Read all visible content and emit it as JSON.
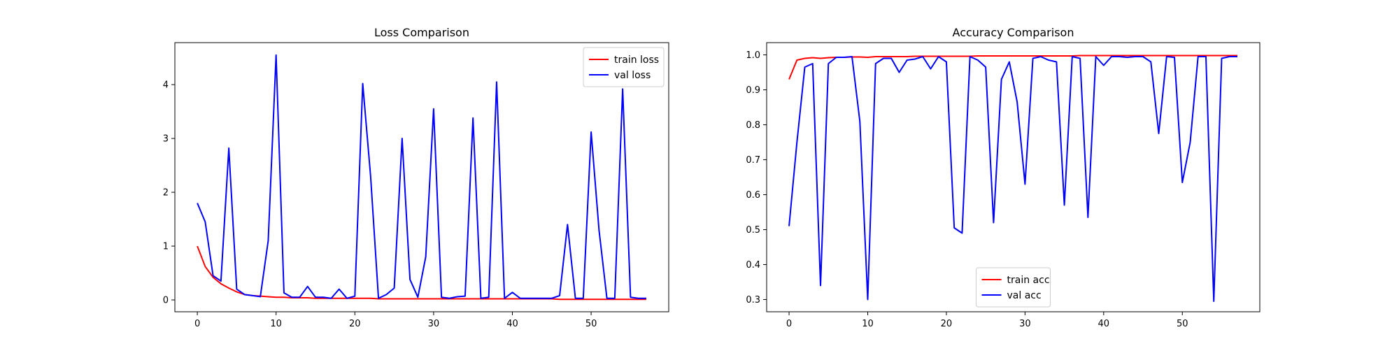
{
  "colors": {
    "train": "#ff0000",
    "val": "#0000ff"
  },
  "chart_data": [
    {
      "type": "line",
      "title": "Loss Comparison",
      "xlabel": "",
      "ylabel": "",
      "xlim": [
        -2.85,
        59.85
      ],
      "ylim": [
        -0.22,
        4.78
      ],
      "xticks": [
        0,
        10,
        20,
        30,
        40,
        50
      ],
      "yticks": [
        0,
        1,
        2,
        3,
        4
      ],
      "legend_position": "upper right",
      "series": [
        {
          "name": "train loss",
          "color": "#ff0000",
          "x": [
            0,
            1,
            2,
            3,
            4,
            5,
            6,
            7,
            8,
            9,
            10,
            11,
            12,
            13,
            14,
            15,
            16,
            17,
            18,
            19,
            20,
            21,
            22,
            23,
            24,
            25,
            26,
            27,
            28,
            29,
            30,
            31,
            32,
            33,
            34,
            35,
            36,
            37,
            38,
            39,
            40,
            41,
            42,
            43,
            44,
            45,
            46,
            47,
            48,
            49,
            50,
            51,
            52,
            53,
            54,
            55,
            56,
            57
          ],
          "y": [
            1.0,
            0.62,
            0.42,
            0.3,
            0.22,
            0.15,
            0.1,
            0.08,
            0.07,
            0.06,
            0.05,
            0.05,
            0.04,
            0.04,
            0.04,
            0.03,
            0.03,
            0.03,
            0.03,
            0.03,
            0.03,
            0.03,
            0.03,
            0.02,
            0.02,
            0.02,
            0.02,
            0.02,
            0.02,
            0.02,
            0.02,
            0.02,
            0.02,
            0.02,
            0.02,
            0.02,
            0.02,
            0.02,
            0.02,
            0.02,
            0.02,
            0.02,
            0.02,
            0.02,
            0.02,
            0.02,
            0.01,
            0.01,
            0.01,
            0.01,
            0.01,
            0.01,
            0.01,
            0.01,
            0.01,
            0.01,
            0.01,
            0.01
          ]
        },
        {
          "name": "val loss",
          "color": "#0000ff",
          "x": [
            0,
            1,
            2,
            3,
            4,
            5,
            6,
            7,
            8,
            9,
            10,
            11,
            12,
            13,
            14,
            15,
            16,
            17,
            18,
            19,
            20,
            21,
            22,
            23,
            24,
            25,
            26,
            27,
            28,
            29,
            30,
            31,
            32,
            33,
            34,
            35,
            36,
            37,
            38,
            39,
            40,
            41,
            42,
            43,
            44,
            45,
            46,
            47,
            48,
            49,
            50,
            51,
            52,
            53,
            54,
            55,
            56,
            57
          ],
          "y": [
            1.8,
            1.45,
            0.45,
            0.35,
            2.82,
            0.2,
            0.1,
            0.08,
            0.06,
            1.1,
            4.55,
            0.13,
            0.05,
            0.05,
            0.25,
            0.05,
            0.05,
            0.03,
            0.2,
            0.03,
            0.07,
            4.02,
            2.3,
            0.03,
            0.1,
            0.22,
            3.0,
            0.38,
            0.05,
            0.8,
            3.55,
            0.05,
            0.03,
            0.06,
            0.07,
            3.38,
            0.03,
            0.05,
            4.05,
            0.03,
            0.14,
            0.03,
            0.03,
            0.03,
            0.03,
            0.03,
            0.08,
            1.4,
            0.03,
            0.03,
            3.12,
            1.3,
            0.03,
            0.03,
            3.92,
            0.05,
            0.03,
            0.03
          ]
        }
      ]
    },
    {
      "type": "line",
      "title": "Accuracy Comparison",
      "xlabel": "",
      "ylabel": "",
      "xlim": [
        -2.85,
        59.85
      ],
      "ylim": [
        0.265,
        1.035
      ],
      "xticks": [
        0,
        10,
        20,
        30,
        40,
        50
      ],
      "yticks": [
        0.3,
        0.4,
        0.5,
        0.6,
        0.7,
        0.8,
        0.9,
        1.0
      ],
      "ytick_labels": [
        "0.3",
        "0.4",
        "0.5",
        "0.6",
        "0.7",
        "0.8",
        "0.9",
        "1.0"
      ],
      "legend_position": "lower center",
      "series": [
        {
          "name": "train acc",
          "color": "#ff0000",
          "x": [
            0,
            1,
            2,
            3,
            4,
            5,
            6,
            7,
            8,
            9,
            10,
            11,
            12,
            13,
            14,
            15,
            16,
            17,
            18,
            19,
            20,
            21,
            22,
            23,
            24,
            25,
            26,
            27,
            28,
            29,
            30,
            31,
            32,
            33,
            34,
            35,
            36,
            37,
            38,
            39,
            40,
            41,
            42,
            43,
            44,
            45,
            46,
            47,
            48,
            49,
            50,
            51,
            52,
            53,
            54,
            55,
            56,
            57
          ],
          "y": [
            0.93,
            0.985,
            0.99,
            0.992,
            0.99,
            0.992,
            0.993,
            0.993,
            0.994,
            0.994,
            0.993,
            0.995,
            0.995,
            0.995,
            0.995,
            0.995,
            0.996,
            0.996,
            0.996,
            0.996,
            0.996,
            0.996,
            0.996,
            0.996,
            0.997,
            0.997,
            0.997,
            0.997,
            0.997,
            0.997,
            0.997,
            0.997,
            0.997,
            0.997,
            0.997,
            0.997,
            0.997,
            0.998,
            0.998,
            0.998,
            0.998,
            0.998,
            0.998,
            0.998,
            0.998,
            0.998,
            0.998,
            0.998,
            0.998,
            0.998,
            0.998,
            0.998,
            0.998,
            0.998,
            0.998,
            0.998,
            0.998,
            0.998
          ]
        },
        {
          "name": "val acc",
          "color": "#0000ff",
          "x": [
            0,
            1,
            2,
            3,
            4,
            5,
            6,
            7,
            8,
            9,
            10,
            11,
            12,
            13,
            14,
            15,
            16,
            17,
            18,
            19,
            20,
            21,
            22,
            23,
            24,
            25,
            26,
            27,
            28,
            29,
            30,
            31,
            32,
            33,
            34,
            35,
            36,
            37,
            38,
            39,
            40,
            41,
            42,
            43,
            44,
            45,
            46,
            47,
            48,
            49,
            50,
            51,
            52,
            53,
            54,
            55,
            56,
            57
          ],
          "y": [
            0.51,
            0.75,
            0.965,
            0.975,
            0.34,
            0.975,
            0.993,
            0.993,
            0.995,
            0.81,
            0.3,
            0.975,
            0.99,
            0.99,
            0.95,
            0.985,
            0.988,
            0.995,
            0.96,
            0.995,
            0.98,
            0.505,
            0.49,
            0.995,
            0.985,
            0.965,
            0.52,
            0.93,
            0.98,
            0.865,
            0.63,
            0.99,
            0.995,
            0.985,
            0.98,
            0.57,
            0.995,
            0.99,
            0.535,
            0.995,
            0.97,
            0.995,
            0.995,
            0.993,
            0.995,
            0.995,
            0.98,
            0.775,
            0.995,
            0.993,
            0.635,
            0.75,
            0.995,
            0.995,
            0.295,
            0.99,
            0.995,
            0.995
          ]
        }
      ]
    }
  ]
}
